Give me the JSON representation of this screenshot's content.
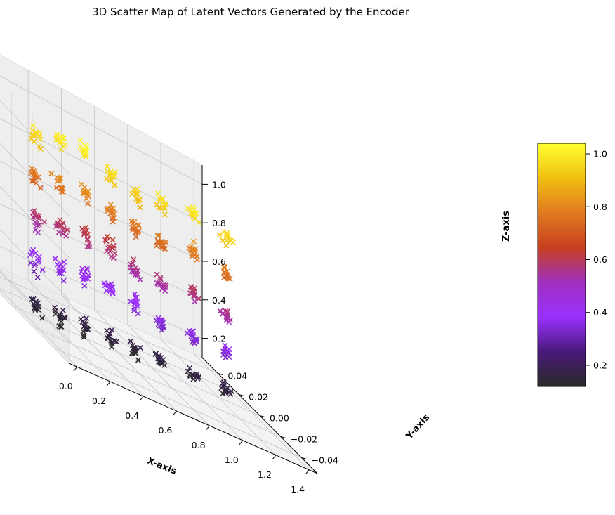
{
  "chart_data": {
    "type": "scatter",
    "title": "3D Scatter Map of Latent Vectors Generated by the Encoder",
    "xlabel": "X-axis",
    "ylabel": "Y-axis",
    "zlabel": "Z-axis",
    "xlim": [
      -0.05,
      1.45
    ],
    "ylim": [
      -0.055,
      0.055
    ],
    "zlim": [
      0.1,
      1.1
    ],
    "xticks": [
      "0.0",
      "0.2",
      "0.4",
      "0.6",
      "0.8",
      "1.0",
      "1.2",
      "1.4"
    ],
    "yticks": [
      "−0.04",
      "−0.02",
      "0.00",
      "0.02",
      "0.04"
    ],
    "zticks": [
      "0.2",
      "0.4",
      "0.6",
      "0.8",
      "1.0"
    ],
    "marker": "x",
    "colormap": "gnuplot",
    "colorbar": {
      "ticks": [
        "0.2",
        "0.4",
        "0.6",
        "0.8",
        "1.0"
      ],
      "range": [
        0.12,
        1.04
      ],
      "colors": [
        "#2a2a2a",
        "#4a1a7a",
        "#9a30ff",
        "#a030c0",
        "#c84020",
        "#e07a20",
        "#f0c010",
        "#ffff30"
      ]
    },
    "grid": true,
    "clusters": [
      {
        "x": 0.1,
        "y": 0.0,
        "z": [
          0.15,
          0.35,
          0.55,
          0.75,
          0.95
        ]
      },
      {
        "x": 0.25,
        "y": 0.0,
        "z": [
          0.15,
          0.38,
          0.58,
          0.78,
          0.98
        ]
      },
      {
        "x": 0.4,
        "y": 0.0,
        "z": [
          0.15,
          0.4,
          0.6,
          0.8,
          1.0
        ]
      },
      {
        "x": 0.55,
        "y": 0.0,
        "z": [
          0.15,
          0.4,
          0.6,
          0.78,
          0.95
        ]
      },
      {
        "x": 0.7,
        "y": 0.0,
        "z": [
          0.15,
          0.38,
          0.55,
          0.75,
          0.92
        ]
      },
      {
        "x": 0.85,
        "y": 0.0,
        "z": [
          0.15,
          0.35,
          0.55,
          0.75,
          0.95
        ]
      },
      {
        "x": 1.05,
        "y": 0.0,
        "z": [
          0.15,
          0.35,
          0.58,
          0.8,
          0.98
        ]
      },
      {
        "x": 1.25,
        "y": 0.0,
        "z": [
          0.15,
          0.35,
          0.55,
          0.75,
          0.95
        ]
      }
    ]
  }
}
